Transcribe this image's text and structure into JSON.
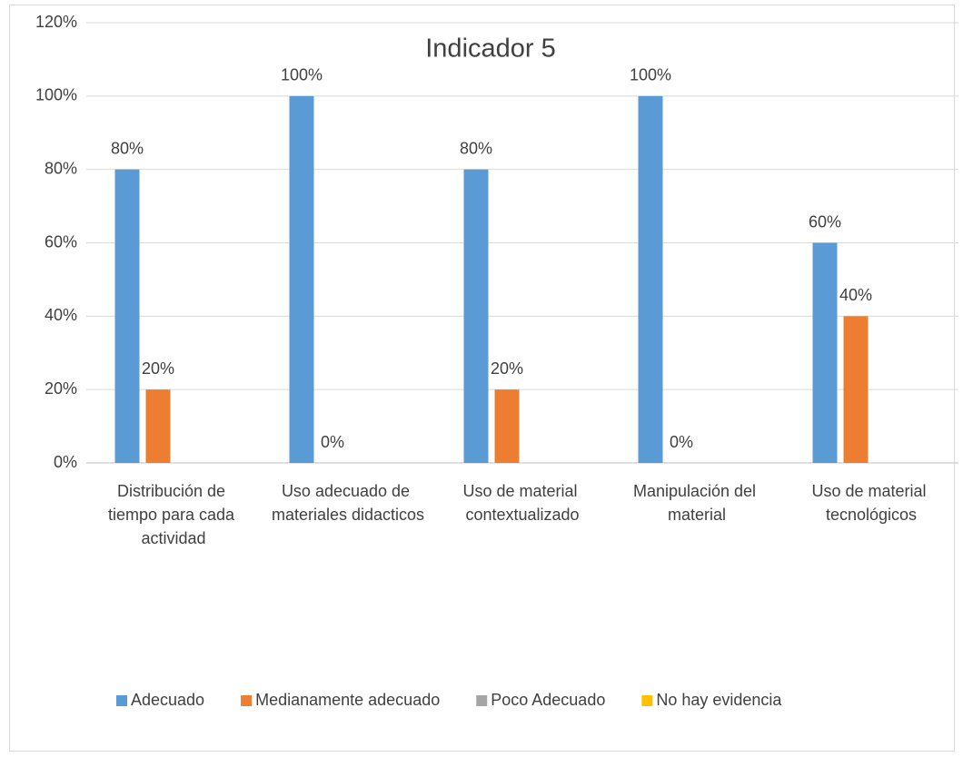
{
  "chart_data": {
    "type": "bar",
    "title": "Indicador 5",
    "categories": [
      "Distribución de tiempo para cada actividad",
      "Uso adecuado de materiales didacticos",
      "Uso de material contextualizado",
      "Manipulación del material",
      "Uso de material tecnológicos"
    ],
    "series": [
      {
        "name": "Adecuado",
        "color": "#5b9bd5",
        "values": [
          80,
          100,
          80,
          100,
          60
        ],
        "value_labels": [
          "80%",
          "100%",
          "80%",
          "100%",
          "60%"
        ]
      },
      {
        "name": "Medianamente adecuado",
        "color": "#ed7d31",
        "values": [
          20,
          0,
          20,
          0,
          40
        ],
        "value_labels": [
          "20%",
          "0%",
          "20%",
          "0%",
          "40%"
        ]
      },
      {
        "name": "Poco Adecuado",
        "color": "#a5a5a5",
        "values": [
          null,
          null,
          null,
          null,
          null
        ]
      },
      {
        "name": "No hay evidencia",
        "color": "#ffc000",
        "values": [
          null,
          null,
          null,
          null,
          null
        ]
      }
    ],
    "ylim": [
      0,
      120
    ],
    "yticks": [
      {
        "value": 0,
        "label": "0%"
      },
      {
        "value": 20,
        "label": "20%"
      },
      {
        "value": 40,
        "label": "40%"
      },
      {
        "value": 60,
        "label": "60%"
      },
      {
        "value": 80,
        "label": "80%"
      },
      {
        "value": 100,
        "label": "100%"
      },
      {
        "value": 120,
        "label": "120%"
      }
    ],
    "grid": true,
    "legend": "bottom"
  }
}
